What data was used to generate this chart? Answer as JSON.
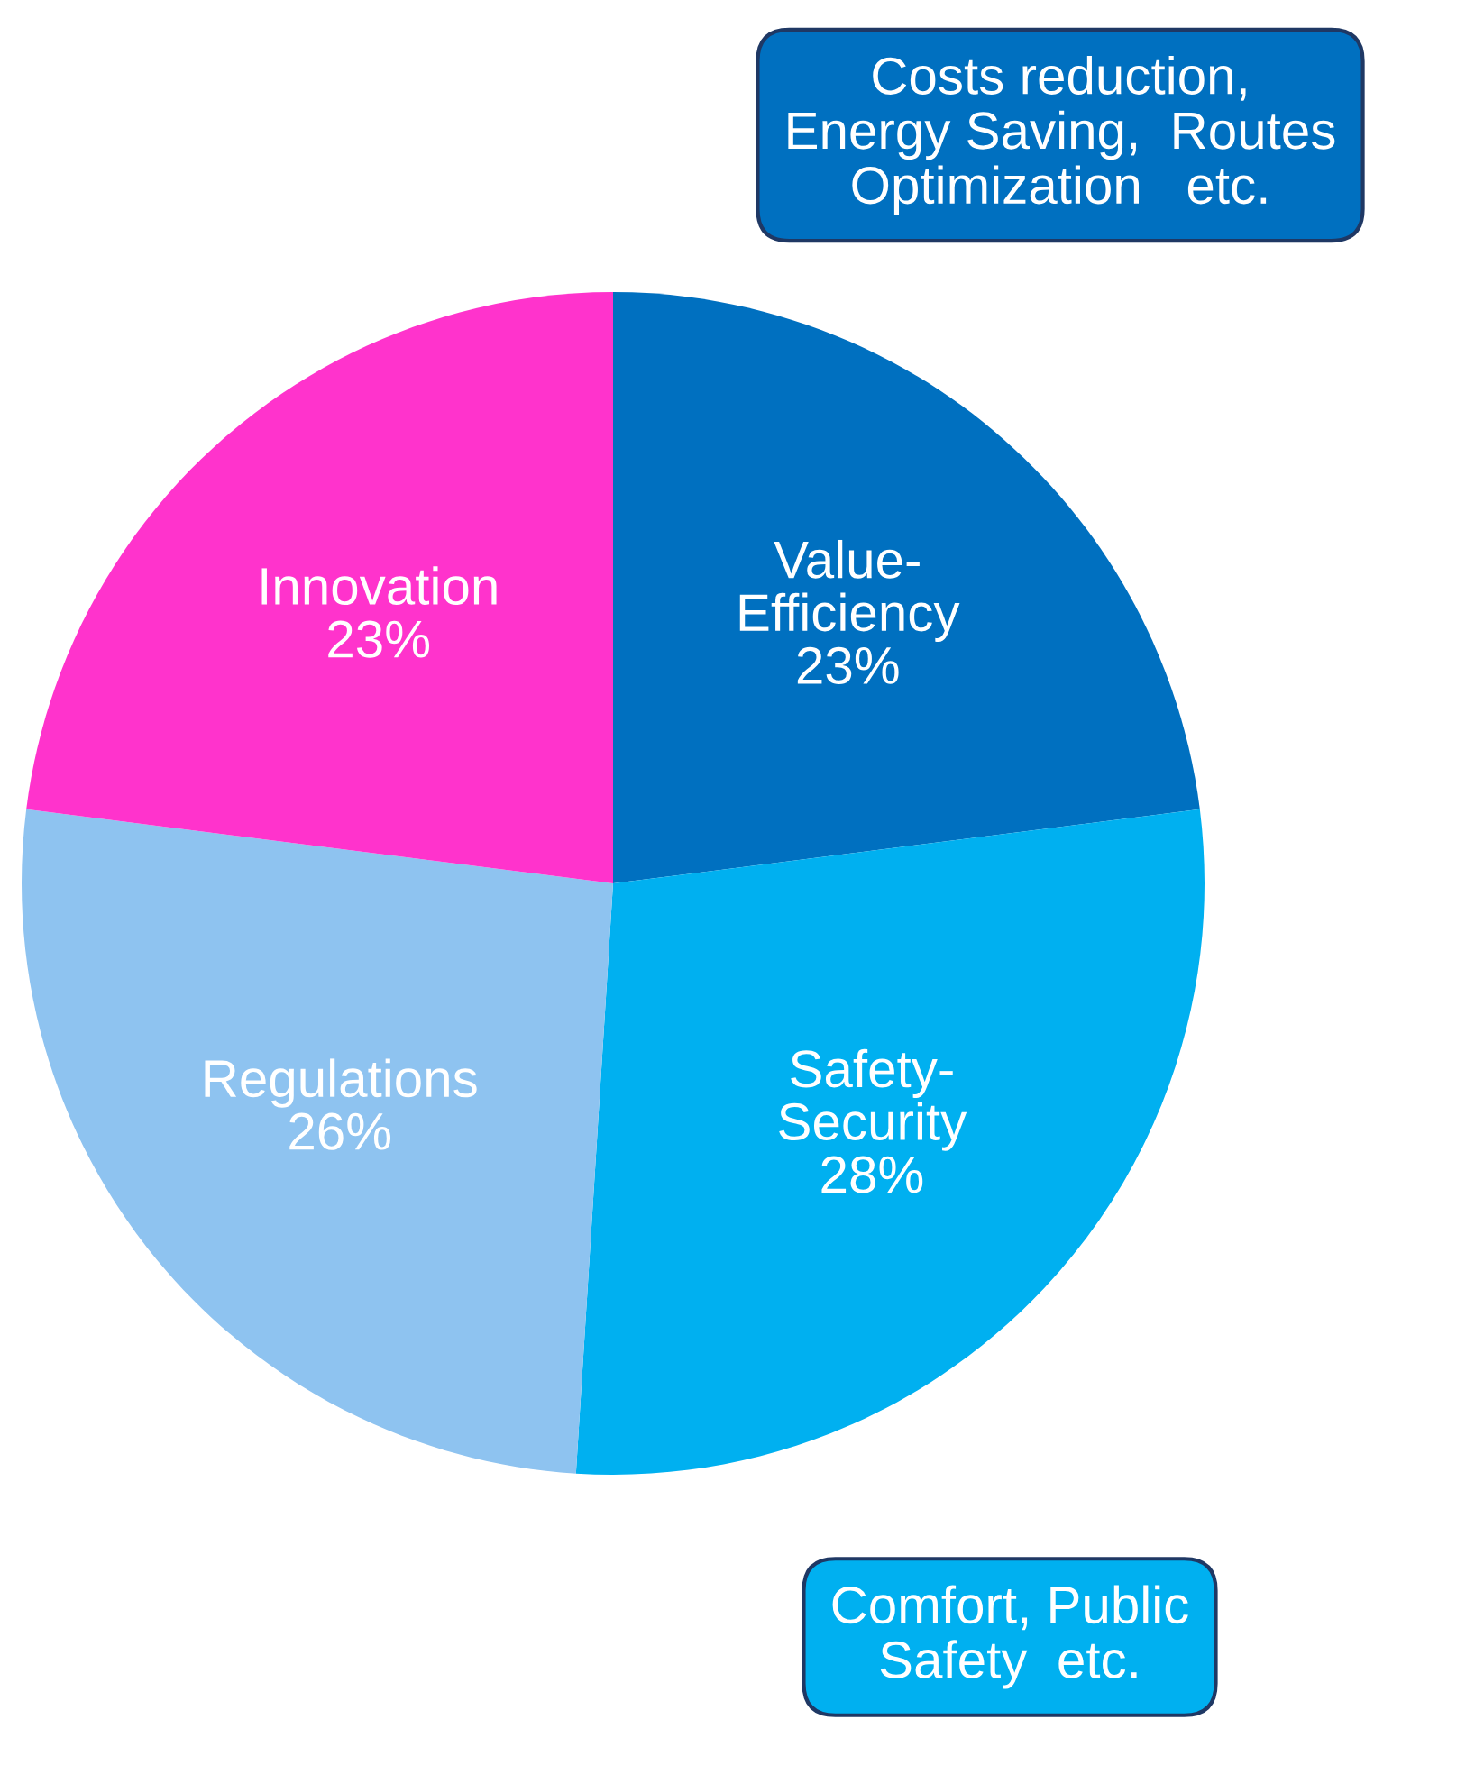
{
  "chart_data": {
    "type": "pie",
    "categories": [
      "Value-\nEfficiency",
      "Safety-\nSecurity",
      "Regulations",
      "Innovation"
    ],
    "values": [
      23,
      28,
      26,
      23
    ],
    "value_labels": [
      "23%",
      "28%",
      "26%",
      "23%"
    ],
    "colors": [
      "#0070c0",
      "#00b0f0",
      "#8ec3f0",
      "#ff33cc"
    ],
    "annotations": [
      "Costs reduction,\nEnergy Saving,  Routes\nOptimization   etc.",
      "Comfort, Public\nSafety  etc."
    ]
  }
}
